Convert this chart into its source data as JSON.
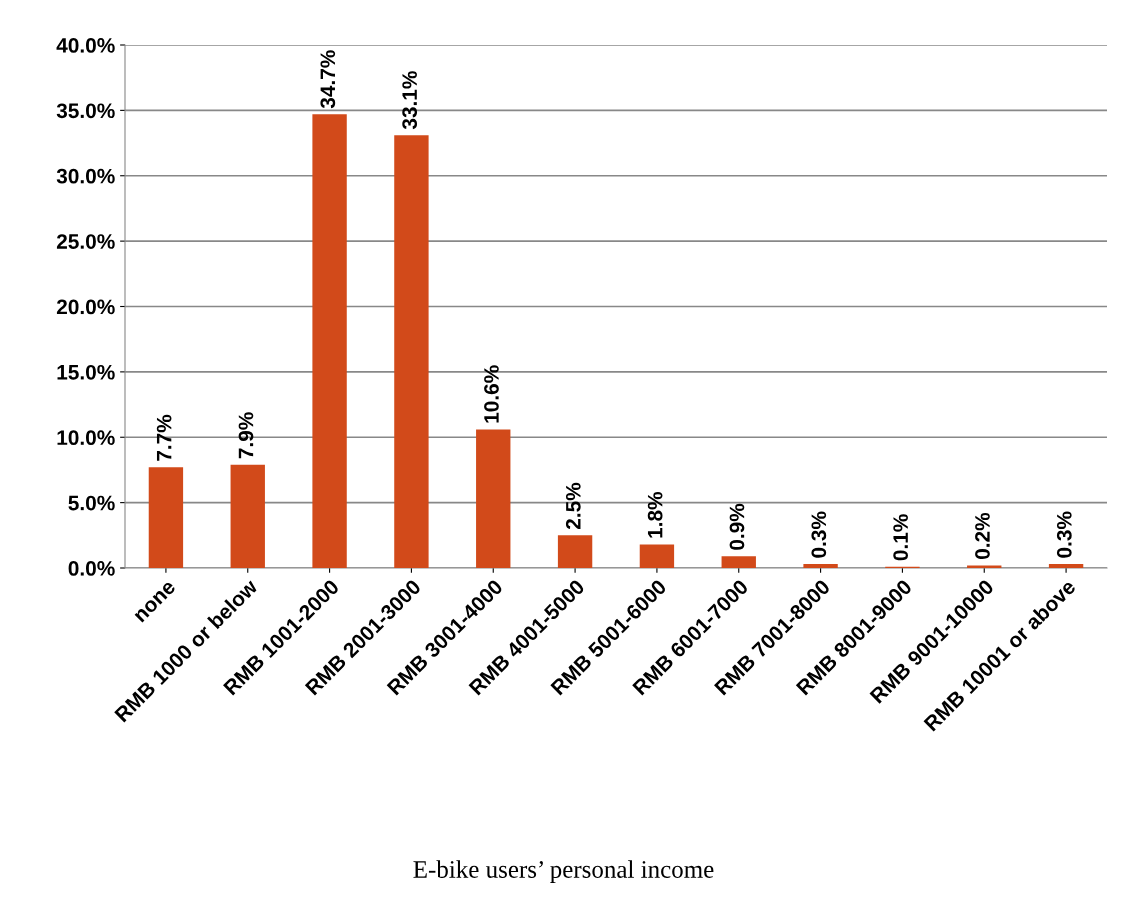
{
  "chart_data": {
    "type": "bar",
    "categories": [
      "none",
      "RMB 1000 or below",
      "RMB 1001-2000",
      "RMB 2001-3000",
      "RMB 3001-4000",
      "RMB 4001-5000",
      "RMB 5001-6000",
      "RMB 6001-7000",
      "RMB 7001-8000",
      "RMB 8001-9000",
      "RMB 9001-10000",
      "RMB 10001 or above"
    ],
    "values": [
      7.7,
      7.9,
      34.7,
      33.1,
      10.6,
      2.5,
      1.8,
      0.9,
      0.3,
      0.1,
      0.2,
      0.3
    ],
    "value_labels": [
      "7.7%",
      "7.9%",
      "34.7%",
      "33.1%",
      "10.6%",
      "2.5%",
      "1.8%",
      "0.9%",
      "0.3%",
      "0.1%",
      "0.2%",
      "0.3%"
    ],
    "color": "#d24a1a",
    "ylim": [
      0,
      40
    ],
    "yticks": [
      {
        "value": 0,
        "label": "0.0%"
      },
      {
        "value": 5,
        "label": "5.0%"
      },
      {
        "value": 10,
        "label": "10.0%"
      },
      {
        "value": 15,
        "label": "15.0%"
      },
      {
        "value": 20,
        "label": "20.0%"
      },
      {
        "value": 25,
        "label": "25.0%"
      },
      {
        "value": 30,
        "label": "30.0%"
      },
      {
        "value": 35,
        "label": "35.0%"
      },
      {
        "value": 40,
        "label": "40.0%"
      }
    ],
    "grid": "y",
    "legend": false,
    "annotations": [
      "E-bike users’ personal income"
    ]
  }
}
